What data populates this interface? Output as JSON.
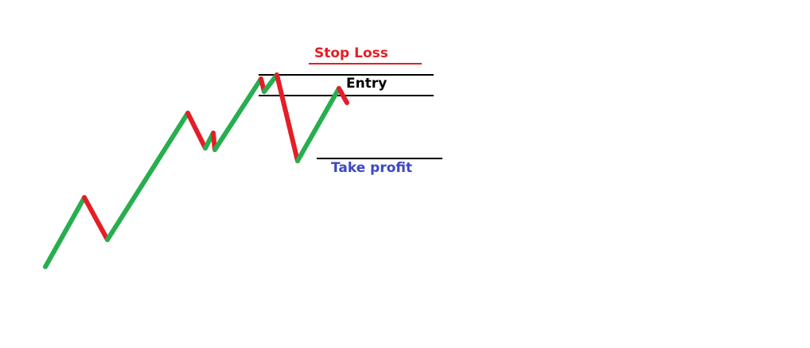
{
  "labels": {
    "stop_loss": "Stop Loss",
    "entry": "Entry",
    "take_profit": "Take profit"
  },
  "colors": {
    "background": "#ffffff",
    "up_leg": "#27ae4f",
    "down_leg": "#e41e26",
    "stop_loss": "#e41e26",
    "entry": "#000000",
    "take_profit": "#3c48c2",
    "level_line": "#000000"
  }
}
